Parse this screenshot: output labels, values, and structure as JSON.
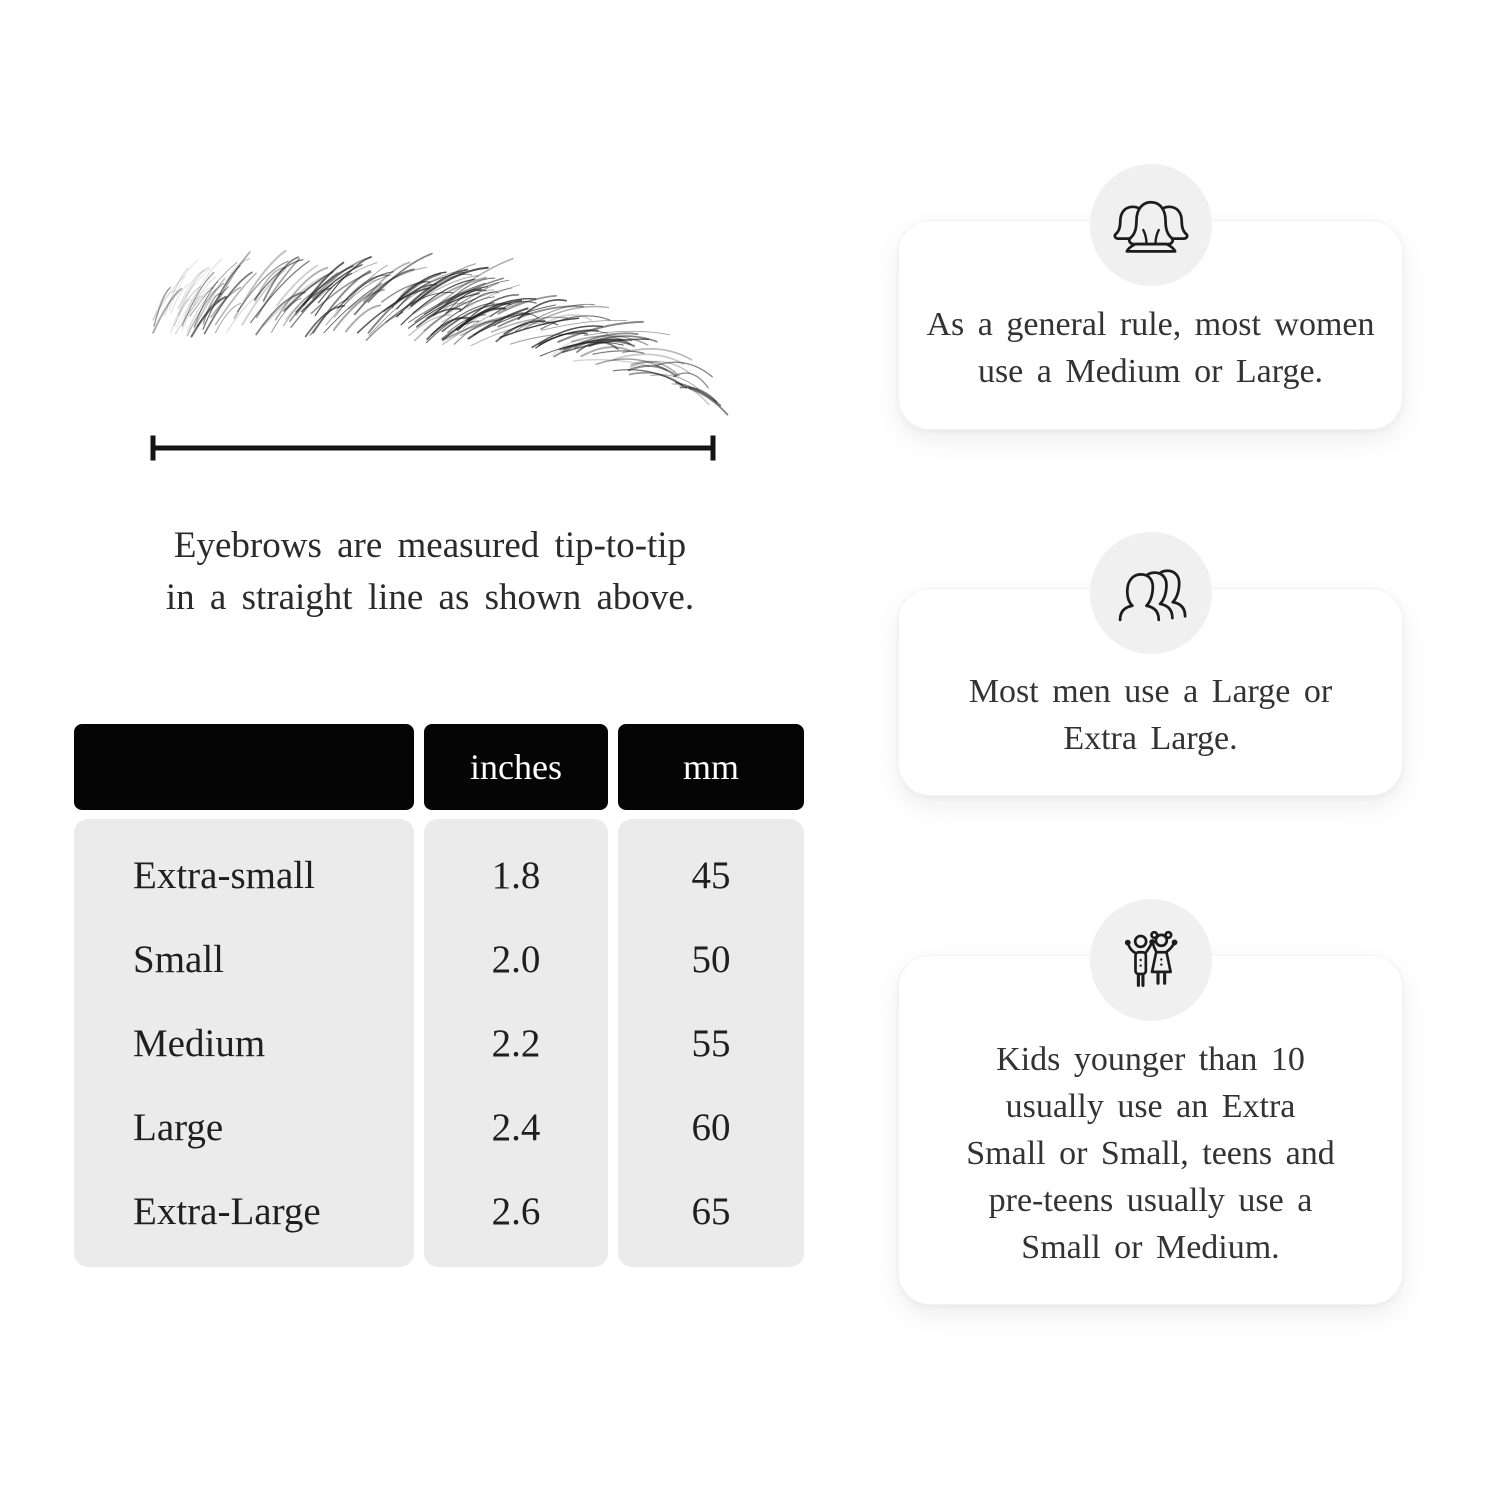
{
  "page": {
    "background_color": "#ffffff",
    "header_black": "#050505",
    "table_body_gray": "#ebebeb",
    "icon_circle_gray": "#f0f0f0",
    "body_text_color": "#2d2d2d"
  },
  "measurement": {
    "illustration_icon": "eyebrow-sketch-illustration",
    "line_icon": "tip-to-tip-measurement-line",
    "caption_lines": [
      "Eyebrows are measured tip-to-tip",
      "in a straight line as shown above."
    ]
  },
  "table": {
    "headers": [
      "",
      "inches",
      "mm"
    ],
    "rows": [
      {
        "label": "Extra-small",
        "inches": "1.8",
        "mm": "45"
      },
      {
        "label": "Small",
        "inches": "2.0",
        "mm": "50"
      },
      {
        "label": "Medium",
        "inches": "2.2",
        "mm": "55"
      },
      {
        "label": "Large",
        "inches": "2.4",
        "mm": "60"
      },
      {
        "label": "Extra-Large",
        "inches": "2.6",
        "mm": "65"
      }
    ]
  },
  "cards": [
    {
      "icon": "women-group-icon",
      "lines": [
        "As a general rule, most women",
        "use a Medium or Large."
      ]
    },
    {
      "icon": "men-group-icon",
      "lines": [
        "Most men use a Large or",
        "Extra Large."
      ]
    },
    {
      "icon": "kids-icon",
      "lines": [
        "Kids younger than 10",
        "usually use an Extra",
        "Small or Small, teens and",
        "pre-teens usually use a",
        "Small or Medium."
      ]
    }
  ]
}
